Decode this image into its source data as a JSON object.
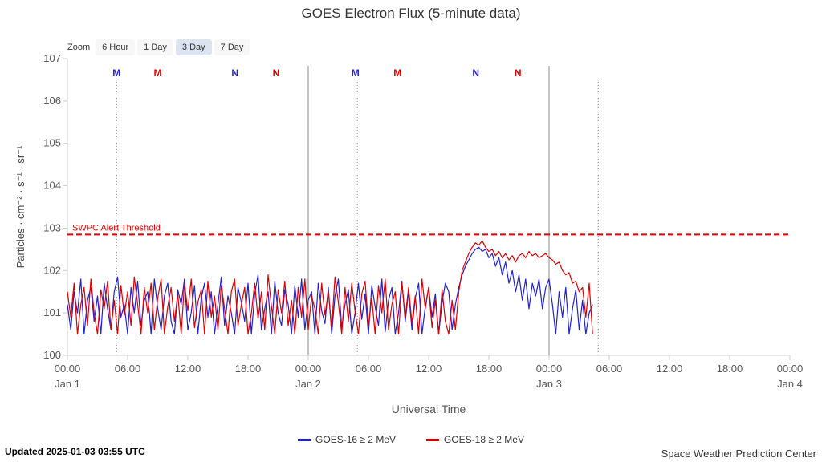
{
  "title": "GOES Electron Flux (5-minute data)",
  "zoom": {
    "label": "Zoom",
    "options": [
      "6 Hour",
      "1 Day",
      "3 Day",
      "7 Day"
    ],
    "selected": "3 Day"
  },
  "axes": {
    "y_label": "Particles · cm⁻² · s⁻¹ · sr⁻¹",
    "x_label": "Universal Time",
    "y_tick_exponents": [
      0,
      1,
      2,
      3,
      4,
      5,
      6,
      7
    ],
    "x_ticks": [
      {
        "h": 0,
        "time": "00:00",
        "day": "Jan 1"
      },
      {
        "h": 6,
        "time": "06:00"
      },
      {
        "h": 12,
        "time": "12:00"
      },
      {
        "h": 18,
        "time": "18:00"
      },
      {
        "h": 24,
        "time": "00:00",
        "day": "Jan 2"
      },
      {
        "h": 30,
        "time": "06:00"
      },
      {
        "h": 36,
        "time": "12:00"
      },
      {
        "h": 42,
        "time": "18:00"
      },
      {
        "h": 48,
        "time": "00:00",
        "day": "Jan 3"
      },
      {
        "h": 54,
        "time": "06:00"
      },
      {
        "h": 60,
        "time": "12:00"
      },
      {
        "h": 66,
        "time": "18:00"
      },
      {
        "h": 72,
        "time": "00:00",
        "day": "Jan 4"
      }
    ]
  },
  "threshold": {
    "label": "SWPC Alert Threshold",
    "log10_value": 2.85,
    "color": "#e00000"
  },
  "plot": {
    "day_boundary_hours": [
      24,
      48
    ],
    "dotted_vlines_hours": [
      4.9,
      28.9,
      52.9
    ],
    "satellite_markers": [
      {
        "h": 4.9,
        "letter": "M",
        "series": 0
      },
      {
        "h": 9.0,
        "letter": "M",
        "series": 1
      },
      {
        "h": 16.7,
        "letter": "N",
        "series": 0
      },
      {
        "h": 20.8,
        "letter": "N",
        "series": 1
      },
      {
        "h": 28.7,
        "letter": "M",
        "series": 0
      },
      {
        "h": 32.9,
        "letter": "M",
        "series": 1
      },
      {
        "h": 40.7,
        "letter": "N",
        "series": 0
      },
      {
        "h": 44.9,
        "letter": "N",
        "series": 1
      }
    ]
  },
  "legend": [
    {
      "label": "GOES-16 ≥ 2 MeV"
    },
    {
      "label": "GOES-18 ≥ 2 MeV"
    }
  ],
  "footer": {
    "updated": "Updated 2025-01-03 03:55 UTC",
    "credit": "Space Weather Prediction Center"
  },
  "chart_data": {
    "type": "line",
    "title": "GOES Electron Flux (5-minute data)",
    "xlabel": "Universal Time",
    "ylabel": "Particles · cm⁻² · s⁻¹ · sr⁻¹",
    "x_unit": "hours since 2025-01-01 00:00 UTC",
    "x_range_hours": [
      0,
      72
    ],
    "x_step_hours": 0.3333333,
    "y_scale": "log10",
    "y_range_exponents": [
      0,
      7
    ],
    "grid": "day boundaries at Jan 2 / Jan 3, dotted satellite-midnight lines",
    "legend_position": "bottom-center",
    "threshold": {
      "name": "SWPC Alert Threshold",
      "log10_value": 2.85
    },
    "series": [
      {
        "name": "GOES-16 ≥ 2 MeV",
        "color": "#2222cc",
        "log10_values": [
          1.2,
          0.6,
          1.5,
          1.0,
          1.8,
          0.5,
          1.3,
          1.6,
          0.8,
          1.4,
          0.5,
          1.7,
          1.1,
          0.6,
          1.5,
          1.85,
          0.9,
          1.2,
          0.5,
          1.6,
          1.0,
          1.75,
          0.7,
          1.3,
          1.5,
          0.5,
          1.8,
          1.1,
          0.6,
          1.4,
          1.7,
          0.8,
          0.5,
          1.55,
          1.2,
          1.8,
          0.6,
          1.0,
          1.65,
          0.5,
          1.35,
          1.7,
          0.9,
          1.5,
          0.5,
          1.2,
          1.85,
          0.7,
          1.4,
          1.0,
          0.5,
          1.6,
          1.25,
          0.8,
          1.7,
          0.5,
          1.45,
          1.9,
          0.6,
          1.1,
          1.5,
          0.5,
          1.75,
          1.0,
          0.7,
          1.55,
          1.2,
          0.5,
          1.65,
          0.9,
          1.8,
          0.6,
          1.3,
          1.5,
          0.5,
          1.7,
          1.05,
          0.75,
          1.6,
          0.5,
          1.4,
          1.8,
          0.65,
          1.2,
          1.55,
          0.5,
          1.0,
          1.7,
          0.85,
          1.45,
          0.5,
          1.65,
          1.15,
          0.7,
          1.8,
          0.55,
          1.3,
          1.6,
          0.5,
          1.0,
          1.75,
          0.8,
          1.5,
          0.6,
          1.35,
          1.7,
          0.5,
          1.15,
          1.6,
          0.9,
          1.45,
          0.5,
          1.25,
          1.7,
          1.5,
          0.6,
          1.2,
          1.6,
          1.9,
          2.1,
          2.25,
          2.4,
          2.5,
          2.55,
          2.45,
          2.5,
          2.3,
          2.4,
          2.1,
          2.3,
          1.9,
          2.2,
          1.7,
          2.0,
          1.5,
          1.9,
          1.3,
          1.8,
          1.1,
          1.7,
          1.4,
          1.8,
          1.1,
          1.6,
          1.8,
          1.2,
          0.5,
          1.5,
          0.9,
          1.6,
          0.5,
          1.1,
          1.55,
          0.6,
          1.3,
          0.5,
          1.0,
          1.2
        ]
      },
      {
        "name": "GOES-18 ≥ 2 MeV",
        "color": "#dd0000",
        "log10_values": [
          1.5,
          0.9,
          1.7,
          0.5,
          1.2,
          1.6,
          0.7,
          1.8,
          1.0,
          0.5,
          1.55,
          1.1,
          1.75,
          0.6,
          1.3,
          0.5,
          1.65,
          0.95,
          1.5,
          0.7,
          1.85,
          1.2,
          0.5,
          1.6,
          1.0,
          1.7,
          0.6,
          1.35,
          1.8,
          0.5,
          1.15,
          1.6,
          0.8,
          1.45,
          0.5,
          1.7,
          1.05,
          1.8,
          0.65,
          1.25,
          1.55,
          0.5,
          1.75,
          0.9,
          1.4,
          0.6,
          1.65,
          1.1,
          0.5,
          1.5,
          1.8,
          0.7,
          1.2,
          1.6,
          0.5,
          1.0,
          1.7,
          0.85,
          1.5,
          0.6,
          1.9,
          1.15,
          0.5,
          1.55,
          1.0,
          1.75,
          0.7,
          1.3,
          0.5,
          1.6,
          0.9,
          1.8,
          0.6,
          1.4,
          1.1,
          0.5,
          1.7,
          0.95,
          1.5,
          0.65,
          1.85,
          1.25,
          0.5,
          1.6,
          0.8,
          1.7,
          1.05,
          0.5,
          1.45,
          1.75,
          0.7,
          1.35,
          0.5,
          1.65,
          1.0,
          1.8,
          0.6,
          1.2,
          1.5,
          0.5,
          1.7,
          0.9,
          1.6,
          0.75,
          1.4,
          0.5,
          1.8,
          1.1,
          1.6,
          0.65,
          1.3,
          0.5,
          1.55,
          0.8,
          0.5,
          1.3,
          0.6,
          1.5,
          2.0,
          2.2,
          2.4,
          2.55,
          2.65,
          2.6,
          2.7,
          2.55,
          2.45,
          2.5,
          2.35,
          2.45,
          2.3,
          2.4,
          2.25,
          2.35,
          2.2,
          2.35,
          2.4,
          2.3,
          2.45,
          2.35,
          2.4,
          2.3,
          2.35,
          2.4,
          2.3,
          2.25,
          2.15,
          2.2,
          2.0,
          1.9,
          1.95,
          1.7,
          1.75,
          1.5,
          1.6,
          0.9,
          1.7,
          0.5
        ]
      }
    ]
  }
}
